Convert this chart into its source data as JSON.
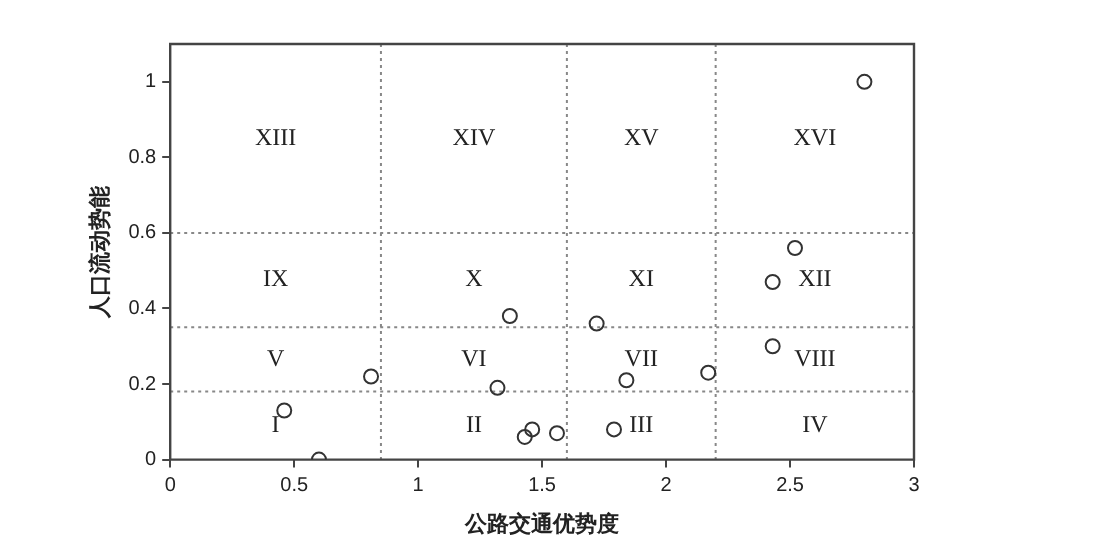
{
  "chart_data": {
    "type": "scatter",
    "xlabel": "公路交通优势度",
    "ylabel": "人口流动势能",
    "x": [
      0.46,
      0.6,
      0.81,
      1.32,
      1.37,
      1.43,
      1.46,
      1.56,
      1.72,
      1.79,
      1.84,
      2.17,
      2.43,
      2.43,
      2.52,
      2.8
    ],
    "values": [
      0.13,
      0,
      0.22,
      0.19,
      0.38,
      0.06,
      0.08,
      0.07,
      0.36,
      0.08,
      0.21,
      0.23,
      0.47,
      0.3,
      0.56,
      1
    ],
    "color": "#333333",
    "marker": "circle",
    "grid": false,
    "legend": false,
    "xlim": [
      0,
      3
    ],
    "xticks": [
      0,
      0.5,
      1,
      1.5,
      2,
      2.5,
      3
    ],
    "ylim": [
      0,
      1.1
    ],
    "yticks": [
      0,
      0.2,
      0.4,
      0.6,
      0.8,
      1
    ],
    "ref_lines": [
      {
        "axis": "x",
        "value": 0.85,
        "color": "#888888",
        "line_style": "dotted"
      },
      {
        "axis": "x",
        "value": 1.6,
        "color": "#888888",
        "line_style": "dotted"
      },
      {
        "axis": "x",
        "value": 2.2,
        "color": "#888888",
        "line_style": "dotted"
      },
      {
        "axis": "y",
        "value": 0.18,
        "color": "#888888",
        "line_style": "dotted"
      },
      {
        "axis": "y",
        "value": 0.35,
        "color": "#888888",
        "line_style": "dotted"
      },
      {
        "axis": "y",
        "value": 0.6,
        "color": "#888888",
        "line_style": "dotted"
      }
    ],
    "annotations": [
      "XIII",
      "XIV",
      "XV",
      "XVI",
      "IX",
      "X",
      "XI",
      "XII",
      "V",
      "VI",
      "VII",
      "VIII",
      "I",
      "II",
      "III",
      "IV"
    ]
  }
}
